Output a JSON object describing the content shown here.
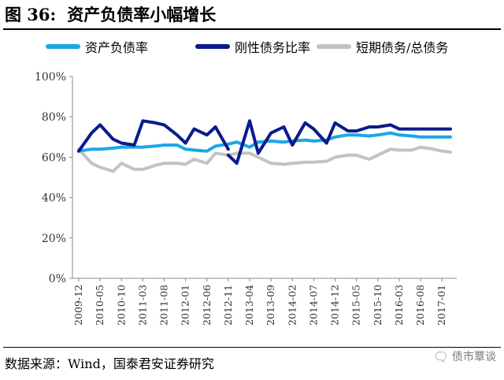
{
  "title": {
    "label": "图 36:",
    "text": "资产负债率小幅增长"
  },
  "source_note": "数据来源：Wind，国泰君安证券研究",
  "watermark": {
    "icon": "wechat-icon",
    "text": "债市覃谈"
  },
  "colors": {
    "series": [
      "#1aa7e6",
      "#0b1a8c",
      "#c3c3c3"
    ]
  },
  "chart_data": {
    "type": "line",
    "title": "资产负债率小幅增长",
    "xlabel": "",
    "ylabel": "",
    "ylim": [
      0,
      100
    ],
    "yticks": [
      "0%",
      "20%",
      "40%",
      "60%",
      "80%",
      "100%"
    ],
    "xticks": [
      "2009-12",
      "2010-05",
      "2010-10",
      "2011-03",
      "2011-08",
      "2012-01",
      "2012-06",
      "2012-11",
      "2013-04",
      "2013-09",
      "2014-02",
      "2014-07",
      "2014-12",
      "2015-05",
      "2015-10",
      "2016-03",
      "2016-08",
      "2017-01"
    ],
    "legend_position": "top",
    "grid": false,
    "series": [
      {
        "name": "资产负债率",
        "segments": [
          {
            "x": [
              "2009-12",
              "2010-03",
              "2010-05",
              "2010-08",
              "2010-10",
              "2011-01",
              "2011-03",
              "2011-06",
              "2011-08",
              "2011-11",
              "2012-01",
              "2012-03",
              "2012-06",
              "2012-08",
              "2012-11",
              "2013-01",
              "2013-04",
              "2013-06",
              "2013-09",
              "2013-12",
              "2014-02",
              "2014-05",
              "2014-07",
              "2014-10",
              "2014-12",
              "2015-03",
              "2015-05",
              "2015-08",
              "2015-10",
              "2016-01",
              "2016-03",
              "2016-06",
              "2016-08",
              "2016-11",
              "2017-01",
              "2017-03"
            ],
            "values": [
              63,
              64,
              64,
              64.5,
              65,
              65,
              65,
              65.5,
              66,
              66,
              64,
              63.5,
              63,
              65.5,
              66.5,
              67.5,
              65,
              67.5,
              68,
              67.5,
              68,
              68.5,
              68,
              68.5,
              70,
              71,
              71,
              70.5,
              71,
              72,
              71,
              70.5,
              70,
              70,
              70,
              70
            ]
          }
        ]
      },
      {
        "name": "刚性债务比率",
        "segments": [
          {
            "x": [
              "2009-12",
              "2010-03",
              "2010-05",
              "2010-08",
              "2010-10",
              "2011-01",
              "2011-03",
              "2011-06",
              "2011-08",
              "2011-11",
              "2012-01",
              "2012-03",
              "2012-06",
              "2012-08",
              "2012-11"
            ],
            "values": [
              63,
              72,
              76,
              69,
              67,
              66,
              78,
              77,
              76,
              71,
              67,
              74,
              71,
              75,
              64
            ]
          },
          {
            "x": [
              "2012-11",
              "2013-01",
              "2013-04",
              "2013-06",
              "2013-09",
              "2013-12",
              "2014-02",
              "2014-05",
              "2014-07",
              "2014-10",
              "2014-12",
              "2015-03",
              "2015-05",
              "2015-08",
              "2015-10",
              "2016-01",
              "2016-03",
              "2016-06",
              "2016-08",
              "2016-11",
              "2017-01",
              "2017-03"
            ],
            "values": [
              61,
              57,
              78,
              62,
              72,
              75,
              66,
              77,
              74,
              67,
              77,
              73,
              73,
              75,
              75,
              76,
              74,
              74,
              74,
              74,
              74,
              74
            ]
          }
        ]
      },
      {
        "name": "短期债务/总债务",
        "segments": [
          {
            "x": [
              "2009-12",
              "2010-03",
              "2010-05",
              "2010-08",
              "2010-10",
              "2011-01",
              "2011-03",
              "2011-06",
              "2011-08",
              "2011-11",
              "2012-01",
              "2012-03",
              "2012-06",
              "2012-08",
              "2012-11",
              "2013-01",
              "2013-04",
              "2013-06",
              "2013-09",
              "2013-12",
              "2014-02",
              "2014-05",
              "2014-07",
              "2014-10",
              "2014-12",
              "2015-03",
              "2015-05",
              "2015-08",
              "2015-10",
              "2016-01",
              "2016-03",
              "2016-06",
              "2016-08",
              "2016-11",
              "2017-01",
              "2017-03"
            ],
            "values": [
              64,
              57,
              55,
              53,
              57,
              54,
              54,
              56,
              57,
              57,
              56.5,
              59,
              57,
              62,
              61,
              62,
              62,
              60,
              57,
              56.5,
              57,
              57.5,
              57.5,
              58,
              60,
              61,
              61,
              59,
              61,
              64,
              63.5,
              63.5,
              65,
              64,
              63,
              62.5
            ]
          }
        ]
      }
    ]
  }
}
